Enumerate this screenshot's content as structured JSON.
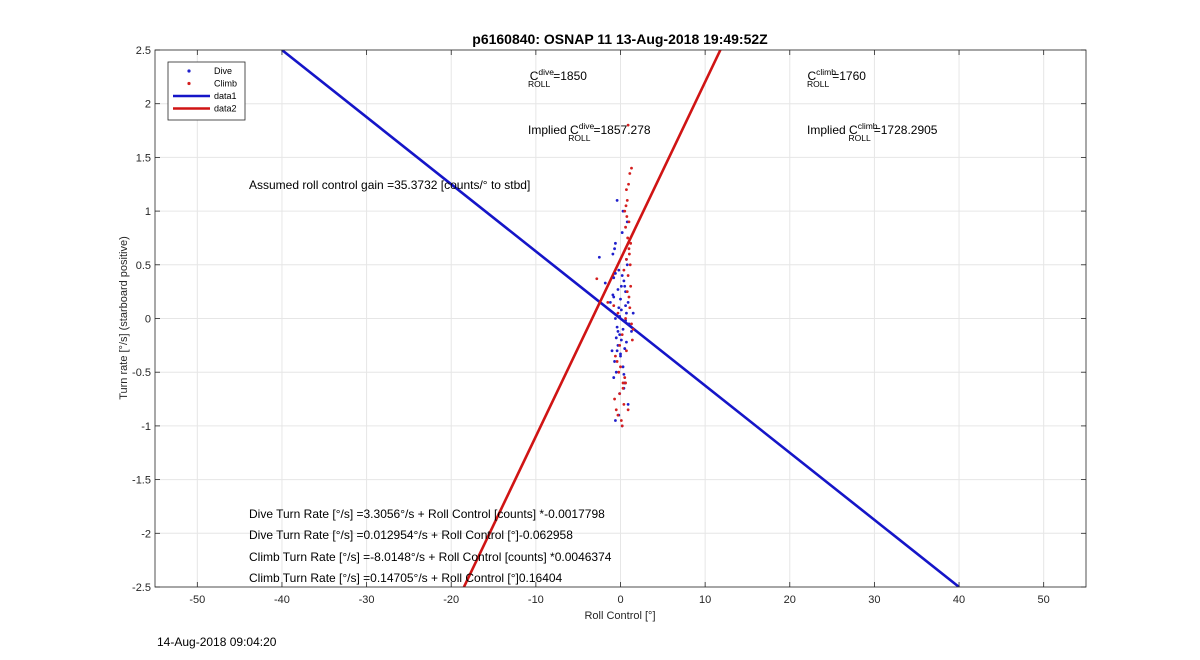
{
  "chart_data": {
    "type": "scatter",
    "title": "p6160840: OSNAP 11 13-Aug-2018 19:49:52Z",
    "xlabel": "Roll Control [°]",
    "ylabel": "Turn rate [°/s] (starboard positive)",
    "xlim": [
      -55,
      55
    ],
    "ylim": [
      -2.5,
      2.5
    ],
    "xticks": [
      -50,
      -40,
      -30,
      -20,
      -10,
      0,
      10,
      20,
      30,
      40,
      50
    ],
    "yticks": [
      -2.5,
      -2,
      -1.5,
      -1,
      -0.5,
      0,
      0.5,
      1,
      1.5,
      2,
      2.5
    ],
    "grid": true,
    "legend_position": "top-left",
    "legend": [
      {
        "label": "Dive",
        "kind": "marker",
        "color": "#1f1fcc"
      },
      {
        "label": "Climb",
        "kind": "marker",
        "color": "#d41f1f"
      },
      {
        "label": "data1",
        "kind": "line",
        "color": "#1515c8"
      },
      {
        "label": "data2",
        "kind": "line",
        "color": "#d01414"
      }
    ],
    "lines": [
      {
        "name": "data1",
        "color": "#1515c8",
        "x": [
          -40,
          40
        ],
        "y": [
          2.5,
          -2.5
        ]
      },
      {
        "name": "data2",
        "color": "#d01414",
        "x": [
          -18.5,
          11.8
        ],
        "y": [
          -2.5,
          2.5
        ]
      }
    ],
    "series": [
      {
        "name": "Dive",
        "color": "#1f1fcc",
        "x": [
          -0.6,
          -0.2,
          0.3,
          0.7,
          -0.8,
          0.1,
          0.5,
          -0.4,
          0.9,
          -0.1,
          0.2,
          -0.7,
          0.6,
          -0.3,
          0.8,
          -0.5,
          0.4,
          0.0,
          -0.9,
          1.0,
          -0.2,
          0.3,
          -0.6,
          0.5,
          0.1,
          -0.4,
          0.7,
          -0.8,
          0.2,
          -0.1,
          0.6,
          -0.3,
          0.9,
          -0.7,
          0.4,
          0.0,
          -0.5,
          0.8,
          -0.2,
          0.3,
          -0.6,
          0.1,
          0.5,
          -0.9,
          0.7,
          -0.4,
          0.2,
          -0.1,
          0.6,
          -0.8,
          -2.5,
          -1.8,
          -1.2,
          1.3,
          -1.0,
          1.5,
          0.0,
          -0.3,
          0.4,
          -0.6
        ],
        "y": [
          0.0,
          0.1,
          -0.1,
          0.05,
          0.2,
          -0.2,
          0.3,
          -0.3,
          0.15,
          -0.15,
          0.4,
          -0.4,
          0.25,
          -0.25,
          0.5,
          -0.5,
          0.35,
          -0.35,
          0.6,
          -0.05,
          0.45,
          -0.45,
          0.7,
          -0.6,
          0.08,
          -0.08,
          0.55,
          -0.55,
          0.8,
          -0.7,
          0.12,
          -0.12,
          -0.8,
          0.65,
          -0.65,
          0.18,
          -0.18,
          0.9,
          -0.9,
          1.0,
          -0.95,
          0.3,
          -0.28,
          0.22,
          -0.22,
          1.1,
          -1.0,
          0.02,
          -0.02,
          0.38,
          0.57,
          0.33,
          0.15,
          -0.12,
          -0.3,
          0.05,
          -0.33,
          0.27,
          -0.52,
          0.42
        ]
      },
      {
        "name": "Climb",
        "color": "#d41f1f",
        "x": [
          0.9,
          1.1,
          0.7,
          1.3,
          0.5,
          1.0,
          0.8,
          1.2,
          0.6,
          0.95,
          1.05,
          0.75,
          1.15,
          0.65,
          0.85,
          0.2,
          -0.3,
          0.4,
          -0.5,
          0.1,
          -0.1,
          0.6,
          -0.7,
          0.3,
          -0.2,
          0.5,
          -0.4,
          0.0,
          0.7,
          -0.6,
          0.9,
          1.2,
          1.0,
          0.8,
          1.1,
          -2.8,
          -1.5,
          1.4,
          1.5,
          0.6,
          -0.3,
          0.2,
          0.4,
          -0.1,
          1.3,
          0.7,
          -0.8,
          0.3,
          0.9,
          1.0
        ],
        "y": [
          1.8,
          1.35,
          1.2,
          1.4,
          1.0,
          0.9,
          1.1,
          0.7,
          0.85,
          1.25,
          0.6,
          0.95,
          0.5,
          1.05,
          0.75,
          -1.0,
          -0.9,
          -0.8,
          -0.85,
          -0.95,
          -0.7,
          -0.6,
          -0.75,
          -0.65,
          -0.5,
          -0.55,
          -0.4,
          -0.45,
          -0.3,
          -0.35,
          0.4,
          0.3,
          0.2,
          0.25,
          0.1,
          0.37,
          0.15,
          -0.2,
          -0.1,
          0.0,
          0.05,
          -0.15,
          0.45,
          -0.25,
          -0.05,
          0.55,
          0.12,
          -0.6,
          -0.85,
          0.65
        ]
      }
    ],
    "annotations": {
      "c_dive": {
        "prefix": "C",
        "sup": "dive",
        "sub": "ROLL",
        "value": "=1850"
      },
      "c_climb": {
        "prefix": "C",
        "sup": "climb",
        "sub": "ROLL",
        "value": "=1760"
      },
      "implied_dive": {
        "prefix": "Implied C",
        "sup": "dive",
        "sub": "ROLL",
        "value": "=1857.278"
      },
      "implied_climb": {
        "prefix": "Implied C",
        "sup": "climb",
        "sub": "ROLL",
        "value": "=1728.2905"
      },
      "gain": "Assumed roll control gain =35.3732 [counts/° to stbd]",
      "eq1": "Dive Turn Rate [°/s] =3.3056°/s + Roll Control [counts] *-0.0017798",
      "eq2": "Dive Turn Rate [°/s] =0.012954°/s + Roll Control [°]-0.062958",
      "eq3": "Climb Turn Rate [°/s] =-8.0148°/s + Roll Control [counts] *0.0046374",
      "eq4": "Climb Turn Rate [°/s] =0.14705°/s + Roll Control [°]0.16404"
    }
  },
  "footer": {
    "timestamp": "14-Aug-2018 09:04:20"
  }
}
